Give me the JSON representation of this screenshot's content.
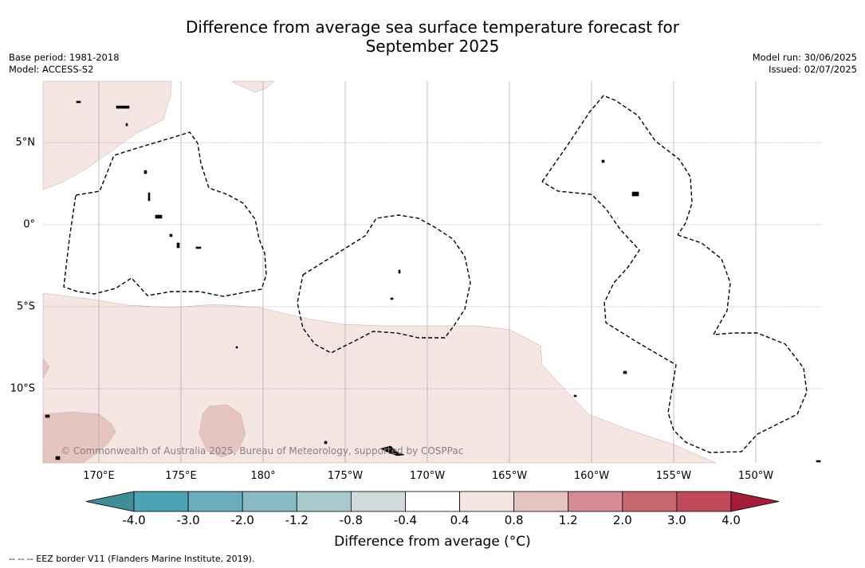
{
  "header": {
    "title_line1": "Difference from average sea surface temperature forecast for",
    "title_line2": "September 2025"
  },
  "meta_left": {
    "base_period": "Base period: 1981-2018",
    "model": "Model: ACCESS-S2"
  },
  "meta_right": {
    "model_run": "Model run: 30/06/2025",
    "issued": "Issued: 02/07/2025"
  },
  "map": {
    "lon_labels": [
      "170°E",
      "175°E",
      "180°",
      "175°W",
      "170°W",
      "165°W",
      "160°W",
      "155°W",
      "150°W"
    ],
    "lat_labels": [
      "5°N",
      "0°",
      "5°S",
      "10°S"
    ],
    "copyright": "© Commonwealth of Australia 2025, Bureau of Meteorology, supported by COSPPac",
    "eez_border_style": "dashed"
  },
  "colorbar": {
    "ticks": [
      "-4.0",
      "-3.0",
      "-2.0",
      "-1.2",
      "-0.8",
      "-0.4",
      "0.4",
      "0.8",
      "1.2",
      "2.0",
      "3.0",
      "4.0"
    ],
    "colors": [
      "#3f8e97",
      "#4ba3b4",
      "#6aaebd",
      "#8abac4",
      "#aac9cc",
      "#d0dadb",
      "#ffffff",
      "#f5e6e4",
      "#e6c5c1",
      "#d58d93",
      "#c86670",
      "#bf4a59",
      "#a51c3a"
    ],
    "label": "Difference from average (°C)"
  },
  "footnote": "--  --  -- EEZ border V11 (Flanders Marine Institute, 2019)."
}
